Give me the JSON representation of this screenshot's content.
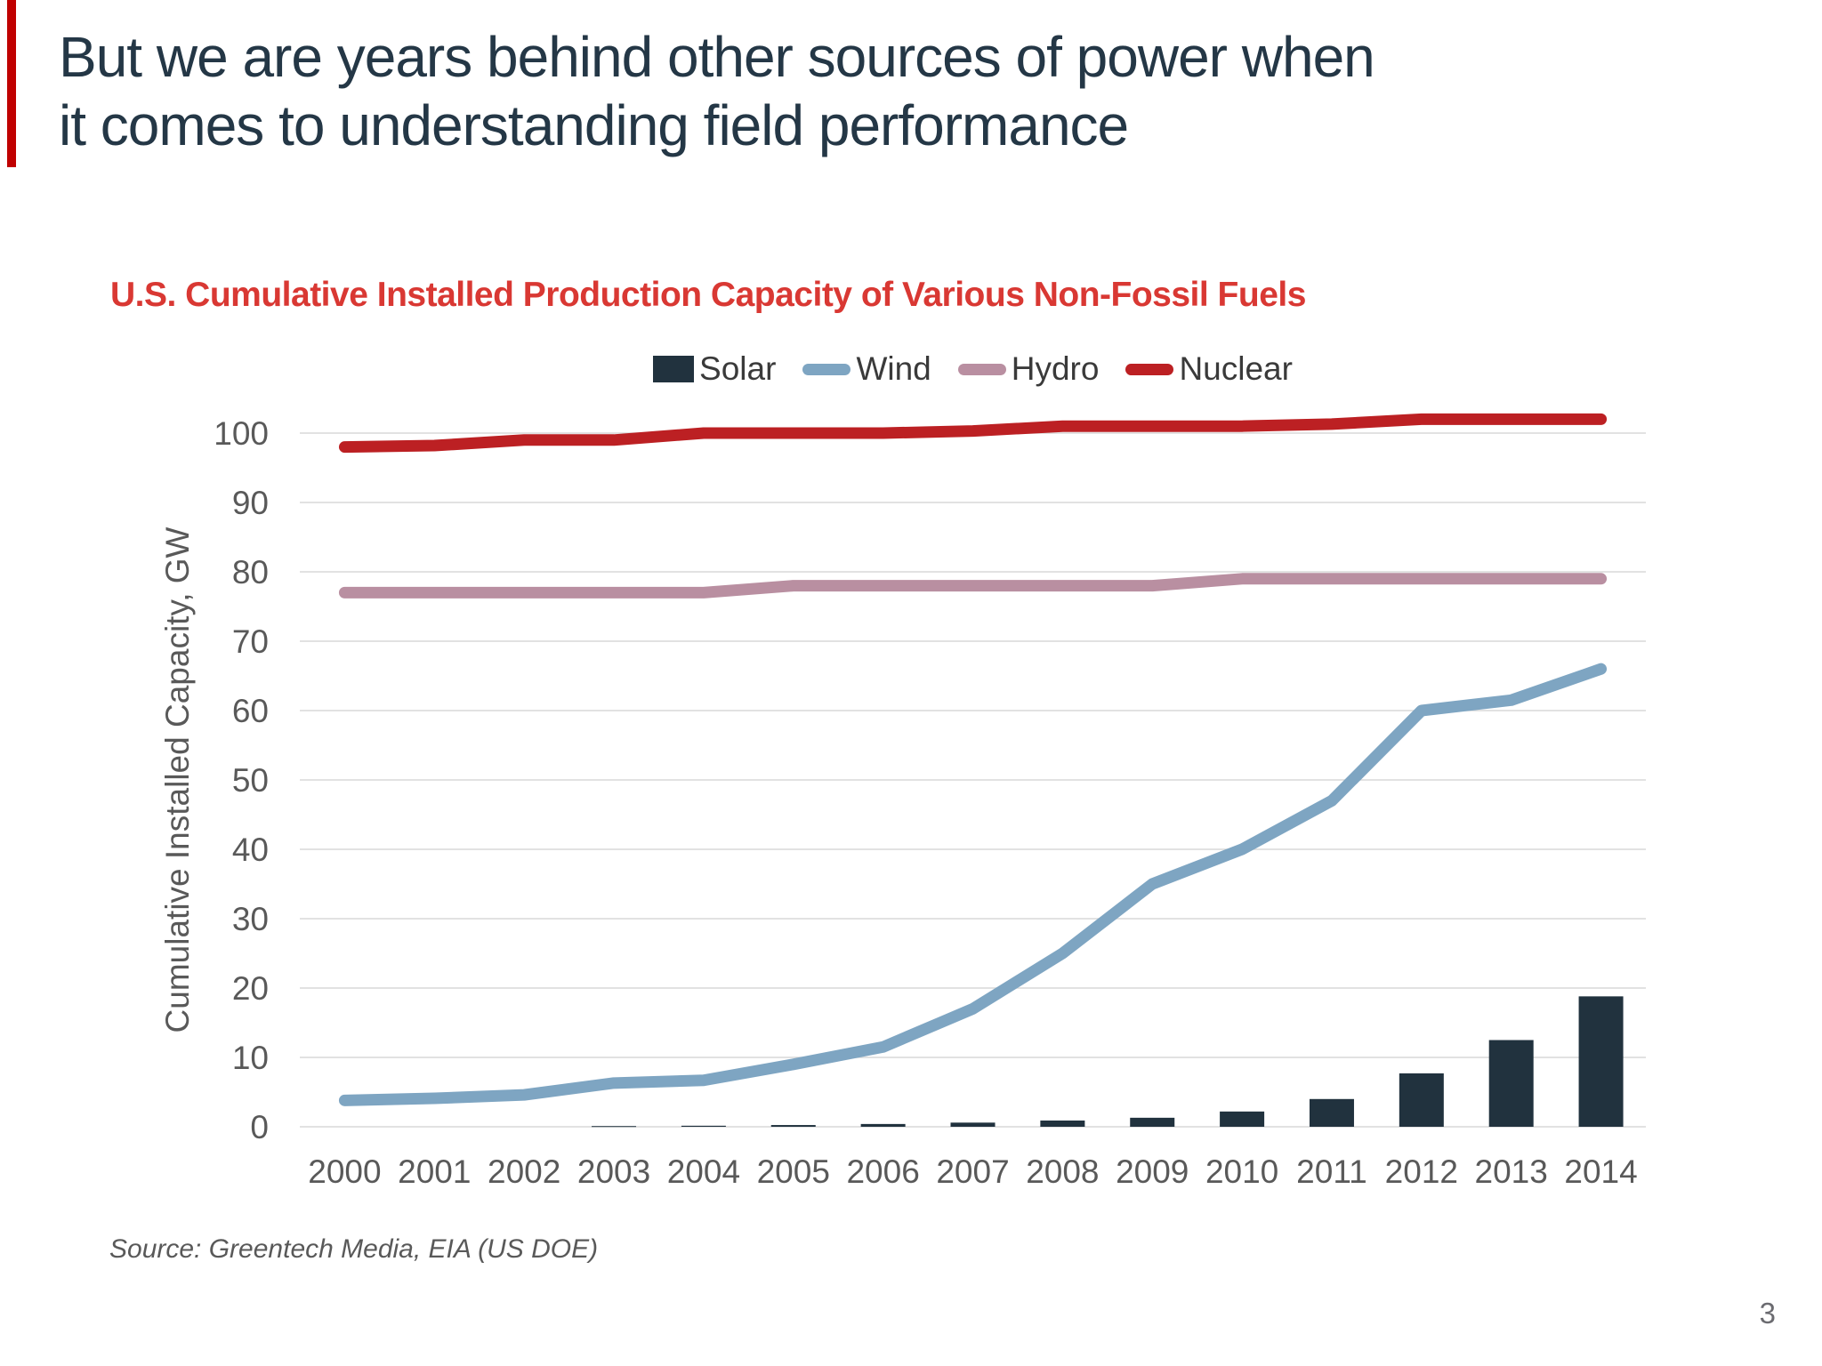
{
  "slide": {
    "title_line1": "But we are years behind other sources of power when",
    "title_line2": "it comes to understanding field performance",
    "source": "Source: Greentech Media, EIA (US DOE)",
    "page_number": "3",
    "accent_bar_color": "#C00000",
    "title_color": "#243746"
  },
  "chart": {
    "title": "U.S. Cumulative Installed Production Capacity of Various Non-Fossil Fuels",
    "title_color": "#D93833"
  },
  "chart_data": {
    "type": "bar",
    "subtype": "combo-bar-line",
    "title": "U.S. Cumulative Installed Production Capacity of Various Non-Fossil Fuels",
    "categories": [
      2000,
      2001,
      2002,
      2003,
      2004,
      2005,
      2006,
      2007,
      2008,
      2009,
      2010,
      2011,
      2012,
      2013,
      2014
    ],
    "series": [
      {
        "name": "Solar",
        "kind": "bar",
        "color": "#21323E",
        "values": [
          0,
          0,
          0,
          0.1,
          0.15,
          0.25,
          0.4,
          0.6,
          0.9,
          1.3,
          2.2,
          4,
          7.7,
          12.5,
          18.8
        ]
      },
      {
        "name": "Wind",
        "kind": "line",
        "color": "#7EA5C2",
        "values": [
          3.8,
          4.1,
          4.6,
          6.3,
          6.7,
          9,
          11.5,
          17,
          25,
          35,
          40,
          47,
          60,
          61.5,
          66
        ]
      },
      {
        "name": "Hydro",
        "kind": "line",
        "color": "#B98FA1",
        "values": [
          77,
          77,
          77,
          77,
          77,
          78,
          78,
          78,
          78,
          78,
          79,
          79,
          79,
          79,
          79
        ]
      },
      {
        "name": "Nuclear",
        "kind": "line",
        "color": "#BC2023",
        "values": [
          98,
          98.2,
          99,
          99,
          100,
          100,
          100,
          100.3,
          101,
          101,
          101,
          101.3,
          102,
          102,
          102
        ]
      }
    ],
    "xlabel": "",
    "ylabel": "Cumulative Installed Capacity, GW",
    "ylim": [
      0,
      100
    ],
    "ytick_step": 10,
    "grid": true,
    "gridline_color": "#D9D9D9",
    "axis_text_color": "#595959",
    "legend_position": "top"
  }
}
